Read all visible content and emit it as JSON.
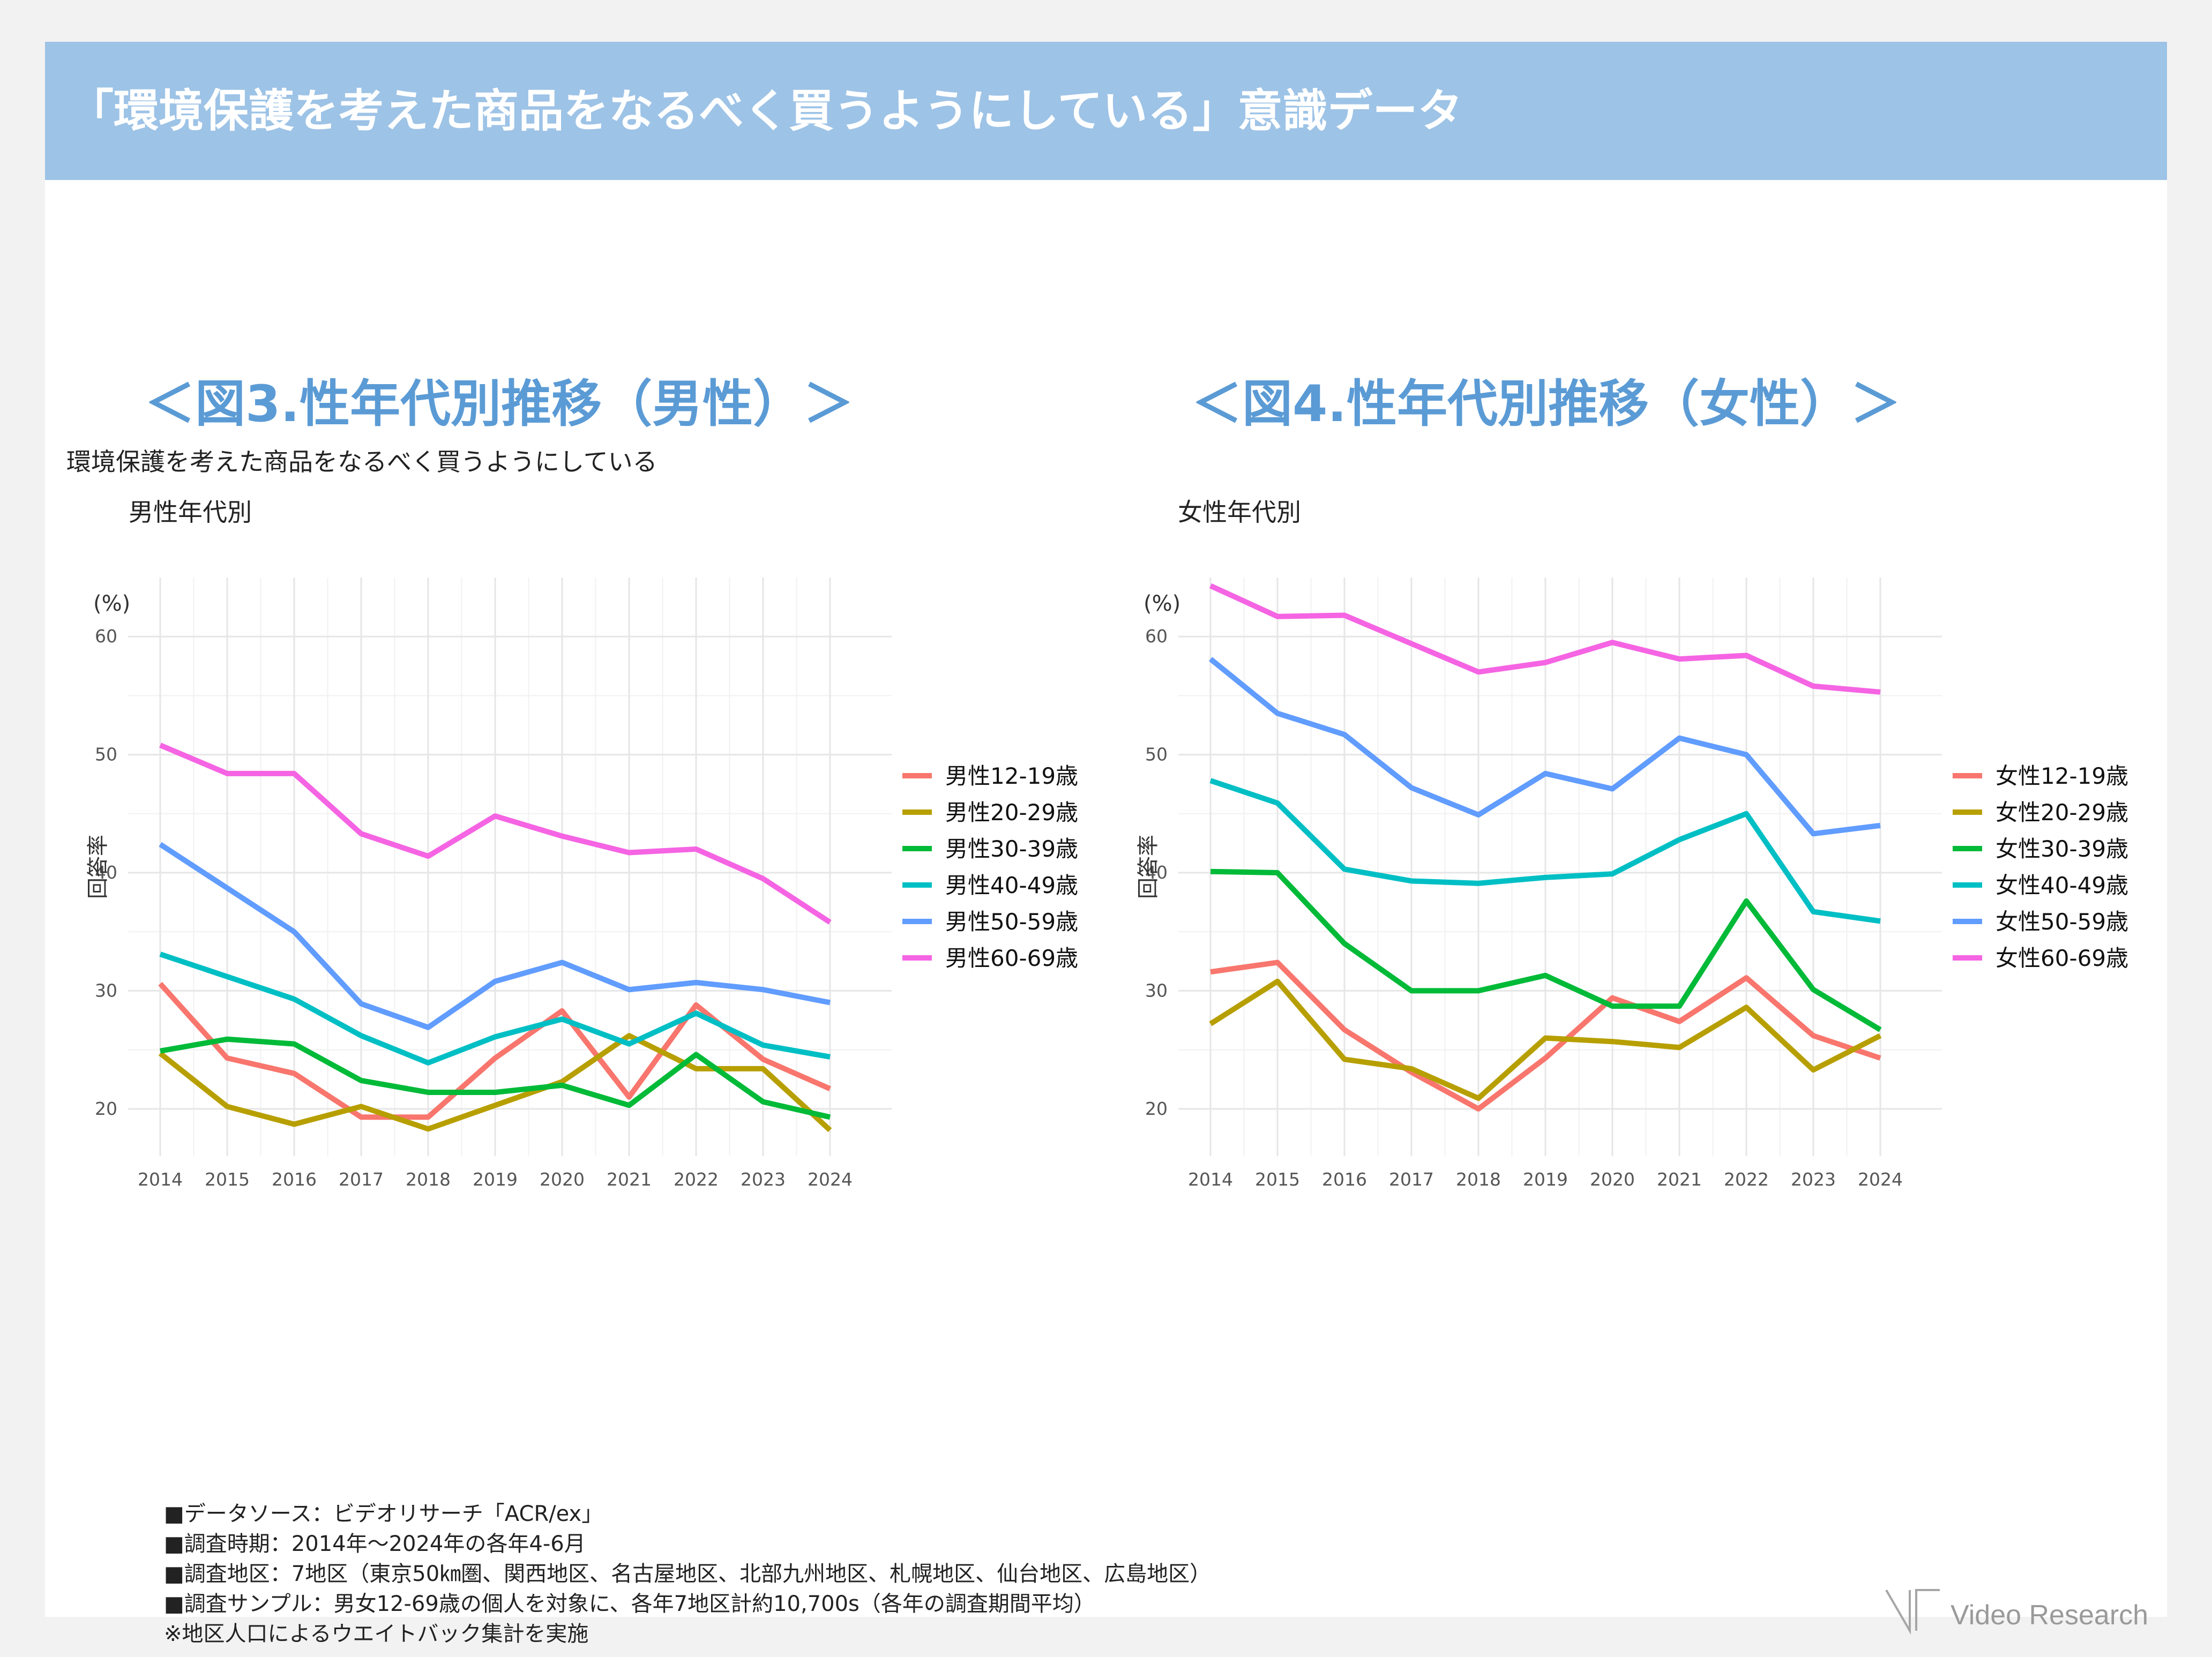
{
  "header": {
    "title": "「環境保護を考えた商品をなるべく買うようにしている」意識データ"
  },
  "figures": {
    "male_title": "＜図3.性年代別推移（男性）＞",
    "female_title": "＜図4.性年代別推移（女性）＞",
    "question_text": "環境保護を考えた商品をなるべく買うようにしている"
  },
  "notes": [
    "■データソース：ビデオリサーチ「ACR/ex」",
    "■調査時期：2014年～2024年の各年4-6月",
    "■調査地区：7地区（東京50㎞圏、関西地区、名古屋地区、北部九州地区、札幌地区、仙台地区、広島地区）",
    "■調査サンプル：男女12-69歳の個人を対象に、各年7地区計約10,700s（各年の調査期間平均）",
    "※地区人口によるウエイトバック集計を実施"
  ],
  "logo": {
    "text": "Video Research"
  },
  "chart_data": [
    {
      "type": "line",
      "title": "男性年代別",
      "xlabel": "",
      "ylabel": "回答率",
      "unit_label": "(%)",
      "x": [
        2014,
        2015,
        2016,
        2017,
        2018,
        2019,
        2020,
        2021,
        2022,
        2023,
        2024
      ],
      "ylim": [
        16,
        65
      ],
      "yticks": [
        20,
        30,
        40,
        50,
        60
      ],
      "series": [
        {
          "name": "男性12-19歳",
          "color": "#f8766d",
          "values": [
            30.6,
            24.3,
            23.0,
            19.3,
            19.3,
            24.3,
            28.3,
            21.0,
            28.8,
            24.2,
            21.7
          ]
        },
        {
          "name": "男性20-29歳",
          "color": "#b79f00",
          "values": [
            24.7,
            20.2,
            18.7,
            20.2,
            18.3,
            20.3,
            22.3,
            26.2,
            23.4,
            23.4,
            18.2
          ]
        },
        {
          "name": "男性30-39歳",
          "color": "#00ba38",
          "values": [
            24.9,
            25.9,
            25.5,
            22.4,
            21.4,
            21.4,
            22.0,
            20.3,
            24.6,
            20.6,
            19.3
          ]
        },
        {
          "name": "男性40-49歳",
          "color": "#00bfc4",
          "values": [
            33.1,
            31.2,
            29.3,
            26.2,
            23.9,
            26.1,
            27.6,
            25.5,
            28.1,
            25.4,
            24.4
          ]
        },
        {
          "name": "男性50-59歳",
          "color": "#619cff",
          "values": [
            42.4,
            38.7,
            35.0,
            28.9,
            26.9,
            30.8,
            32.4,
            30.1,
            30.7,
            30.1,
            29.0
          ]
        },
        {
          "name": "男性60-69歳",
          "color": "#f564e3",
          "values": [
            50.8,
            48.4,
            48.4,
            43.3,
            41.4,
            44.8,
            43.1,
            41.7,
            42.0,
            39.5,
            35.8
          ]
        }
      ]
    },
    {
      "type": "line",
      "title": "女性年代別",
      "xlabel": "",
      "ylabel": "回答率",
      "unit_label": "(%)",
      "x": [
        2014,
        2015,
        2016,
        2017,
        2018,
        2019,
        2020,
        2021,
        2022,
        2023,
        2024
      ],
      "ylim": [
        16,
        65
      ],
      "yticks": [
        20,
        30,
        40,
        50,
        60
      ],
      "series": [
        {
          "name": "女性12-19歳",
          "color": "#f8766d",
          "values": [
            31.6,
            32.4,
            26.7,
            23.1,
            20.0,
            24.3,
            29.4,
            27.4,
            31.1,
            26.2,
            24.3
          ]
        },
        {
          "name": "女性20-29歳",
          "color": "#b79f00",
          "values": [
            27.2,
            30.8,
            24.2,
            23.4,
            20.9,
            26.0,
            25.7,
            25.2,
            28.6,
            23.3,
            26.2
          ]
        },
        {
          "name": "女性30-39歳",
          "color": "#00ba38",
          "values": [
            40.1,
            40.0,
            34.0,
            30.0,
            30.0,
            31.3,
            28.7,
            28.7,
            37.6,
            30.1,
            26.7
          ]
        },
        {
          "name": "女性40-49歳",
          "color": "#00bfc4",
          "values": [
            47.8,
            45.9,
            40.3,
            39.3,
            39.1,
            39.6,
            39.9,
            42.8,
            45.0,
            36.7,
            35.9
          ]
        },
        {
          "name": "女性50-59歳",
          "color": "#619cff",
          "values": [
            58.1,
            53.5,
            51.7,
            47.2,
            44.9,
            48.4,
            47.1,
            51.4,
            50.0,
            43.3,
            44.0
          ]
        },
        {
          "name": "女性60-69歳",
          "color": "#f564e3",
          "values": [
            64.3,
            61.7,
            61.8,
            59.4,
            57.0,
            57.8,
            59.5,
            58.1,
            58.4,
            55.8,
            55.3
          ]
        }
      ]
    }
  ]
}
